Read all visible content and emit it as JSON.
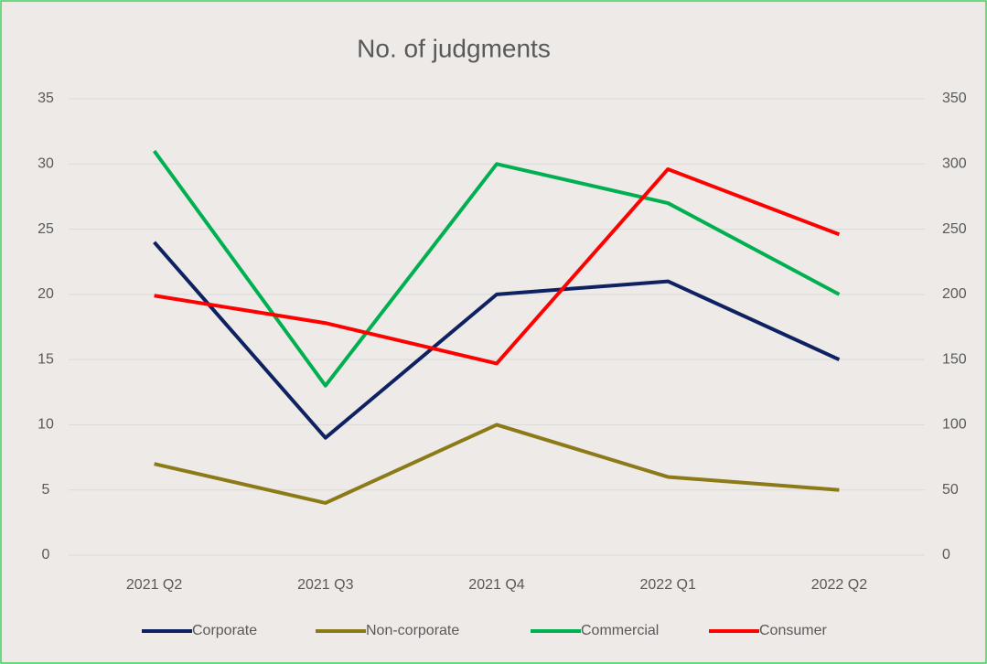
{
  "chart_data": {
    "type": "line",
    "title": "No. of judgments",
    "categories": [
      "2021 Q2",
      "2021 Q3",
      "2021 Q4",
      "2022 Q1",
      "2022 Q2"
    ],
    "series": [
      {
        "name": "Corporate",
        "color": "#0e2262",
        "values": [
          24,
          9,
          20,
          21,
          15
        ]
      },
      {
        "name": "Non-corporate",
        "color": "#8b7a17",
        "values": [
          7,
          4,
          10,
          6,
          5
        ]
      },
      {
        "name": "Commercial",
        "color": "#00b050",
        "values": [
          31,
          13,
          30,
          27,
          20
        ]
      },
      {
        "name": "Consumer",
        "color": "#ff0000",
        "axis": "y2",
        "values": [
          199,
          178,
          147,
          296,
          246
        ]
      }
    ],
    "ylim": [
      0,
      35
    ],
    "yticks": [
      0,
      5,
      10,
      15,
      20,
      25,
      30,
      35
    ],
    "y2lim": [
      0,
      350
    ],
    "y2ticks": [
      0,
      50,
      100,
      150,
      200,
      250,
      300,
      350
    ],
    "grid": true,
    "legend": "bottom"
  }
}
